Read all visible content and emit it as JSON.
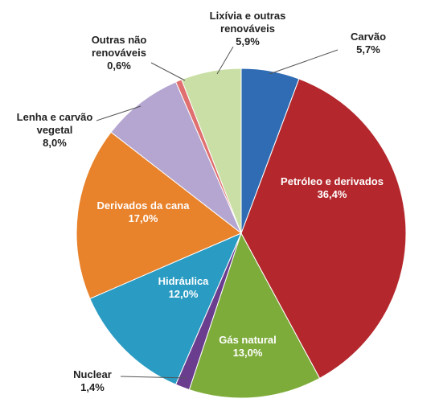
{
  "chart_data": {
    "type": "pie",
    "categories": [
      "Carvão",
      "Petróleo e derivados",
      "Gás natural",
      "Nuclear",
      "Hidráulica",
      "Derivados da cana",
      "Lenha e carvão vegetal",
      "Outras não renováveis",
      "Lixívia e outras renováveis"
    ],
    "values": [
      5.7,
      36.4,
      13.0,
      1.4,
      12.0,
      17.0,
      8.0,
      0.6,
      5.9
    ],
    "value_labels": [
      "5,7%",
      "36,4%",
      "13,0%",
      "1,4%",
      "12,0%",
      "17,0%",
      "8,0%",
      "0,6%",
      "5,9%"
    ],
    "colors": [
      "#2f6cb3",
      "#b4282d",
      "#7eac3b",
      "#6a3d8f",
      "#2a9bc2",
      "#e8822b",
      "#b4a6d0",
      "#e07070",
      "#cadfa5"
    ]
  }
}
